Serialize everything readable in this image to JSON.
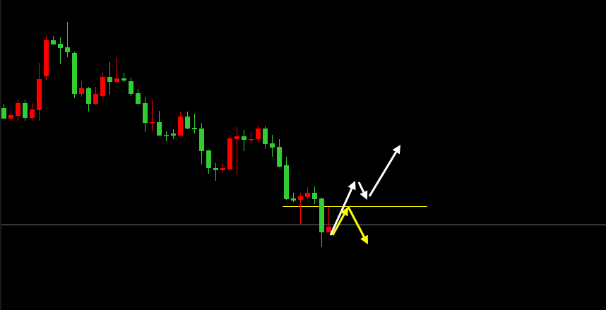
{
  "chart_data": {
    "type": "candlestick",
    "title": "",
    "xlabel": "",
    "ylabel": "",
    "grid": false,
    "colors": {
      "background": "#000000",
      "bull": "#32cd32",
      "bear": "#ff0000",
      "level_line": "#ffff00",
      "price_line": "#6f8090",
      "arrow_primary": "#ffffff",
      "arrow_secondary": "#ffff00"
    },
    "candles": [
      [
        271,
        292,
        271,
        286
      ],
      [
        276,
        282,
        268,
        271
      ],
      [
        293,
        299,
        267,
        275
      ],
      [
        272,
        298,
        268,
        293
      ],
      [
        284,
        293,
        268,
        272
      ],
      [
        327,
        350,
        268,
        283
      ],
      [
        382,
        389,
        326,
        331
      ],
      [
        376,
        388,
        376,
        382
      ],
      [
        371,
        386,
        348,
        377
      ],
      [
        365,
        408,
        358,
        372
      ],
      [
        306,
        366,
        300,
        364
      ],
      [
        314,
        324,
        302,
        306
      ],
      [
        292,
        316,
        281,
        314
      ],
      [
        306,
        316,
        290,
        292
      ],
      [
        330,
        336,
        301,
        303
      ],
      [
        323,
        351,
        305,
        330
      ],
      [
        328,
        358,
        321,
        323
      ],
      [
        325,
        336,
        323,
        328
      ],
      [
        306,
        329,
        303,
        324
      ],
      [
        292,
        313,
        291,
        307
      ],
      [
        265,
        302,
        252,
        293
      ],
      [
        266,
        298,
        253,
        265
      ],
      [
        247,
        282,
        247,
        266
      ],
      [
        248,
        253,
        239,
        248
      ],
      [
        247,
        256,
        242,
        250
      ],
      [
        274,
        280,
        246,
        247
      ],
      [
        257,
        281,
        256,
        274
      ],
      [
        256,
        278,
        250,
        258
      ],
      [
        225,
        265,
        206,
        257
      ],
      [
        201,
        227,
        193,
        226
      ],
      [
        198,
        208,
        183,
        201
      ],
      [
        201,
        207,
        195,
        198
      ],
      [
        243,
        248,
        198,
        199
      ],
      [
        246,
        259,
        192,
        242
      ],
      [
        241,
        255,
        225,
        246
      ],
      [
        242,
        252,
        237,
        241
      ],
      [
        257,
        261,
        237,
        242
      ],
      [
        235,
        260,
        228,
        257
      ],
      [
        230,
        248,
        217,
        236
      ],
      [
        203,
        242,
        202,
        231
      ],
      [
        157,
        217,
        156,
        205
      ],
      [
        155,
        166,
        153,
        158
      ],
      [
        161,
        166,
        122,
        156
      ],
      [
        166,
        174,
        157,
        160
      ],
      [
        157,
        175,
        150,
        166
      ],
      [
        110,
        159,
        89,
        158
      ],
      [
        118,
        146,
        110,
        110
      ]
    ],
    "candle_format": [
      "open",
      "high",
      "low",
      "close"
    ],
    "horizontal_lines": [
      {
        "kind": "level",
        "price": 147,
        "from_index": 39.5,
        "to_index": 60,
        "color": "#ffff00"
      },
      {
        "kind": "price",
        "price": 121,
        "color": "#6f8090"
      }
    ],
    "arrows": [
      {
        "color": "#ffffff",
        "from": [
          46.3,
          106
        ],
        "to": [
          49.8,
          183
        ]
      },
      {
        "color": "#ffffff",
        "from": [
          50.3,
          181
        ],
        "to": [
          51.5,
          156
        ]
      },
      {
        "color": "#ffffff",
        "from": [
          51.8,
          161
        ],
        "to": [
          56.2,
          234
        ]
      },
      {
        "color": "#ffff00",
        "from": [
          46.6,
          106
        ],
        "to": [
          48.8,
          146
        ]
      },
      {
        "color": "#ffff00",
        "from": [
          48.8,
          146
        ],
        "to": [
          51.6,
          93
        ]
      }
    ]
  }
}
